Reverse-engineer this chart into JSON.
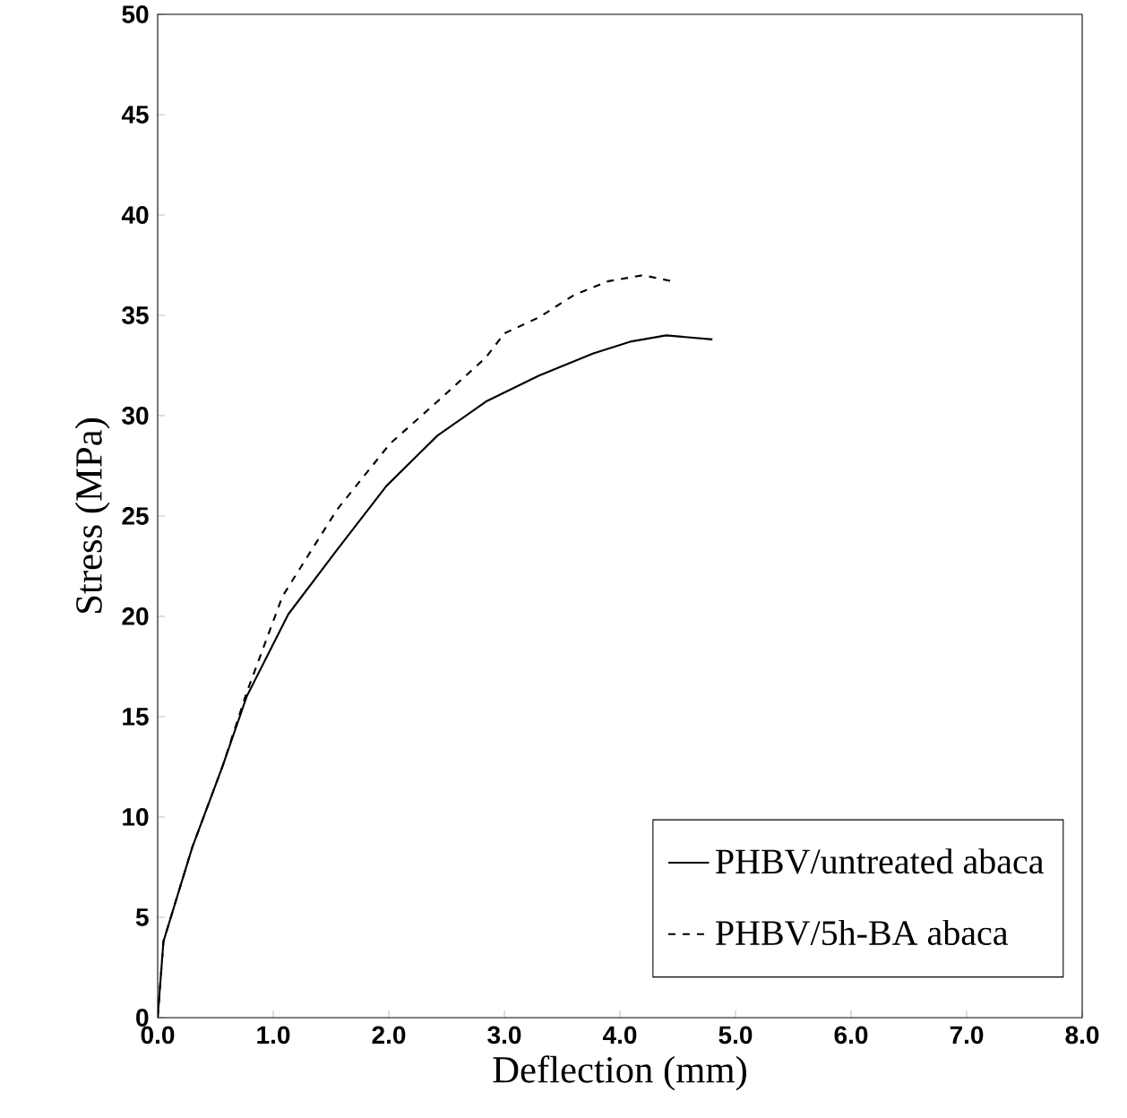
{
  "chart_data": {
    "type": "line",
    "xlabel": "Deflection  (mm)",
    "ylabel": "Stress  (MPa)",
    "xlim": [
      0,
      8
    ],
    "ylim": [
      0,
      50
    ],
    "xticks": [
      {
        "value": 0,
        "label": "0.0"
      },
      {
        "value": 1,
        "label": "1.0"
      },
      {
        "value": 2,
        "label": "2.0"
      },
      {
        "value": 3,
        "label": "3.0"
      },
      {
        "value": 4,
        "label": "4.0"
      },
      {
        "value": 5,
        "label": "5.0"
      },
      {
        "value": 6,
        "label": "6.0"
      },
      {
        "value": 7,
        "label": "7.0"
      },
      {
        "value": 8,
        "label": "8.0"
      }
    ],
    "yticks": [
      0,
      5,
      10,
      15,
      20,
      25,
      30,
      35,
      40,
      45,
      50
    ],
    "legend": "bottom right",
    "grid": false,
    "marker": "none",
    "series": [
      {
        "name": "PHBV/untreated abaca",
        "color": "#000000",
        "line_style": "solid",
        "x": [
          0,
          0.05,
          0.3,
          0.56,
          0.77,
          1.13,
          1.55,
          1.98,
          2.42,
          2.84,
          3.3,
          3.77,
          4.1,
          4.4,
          4.8
        ],
        "values": [
          0,
          3.8,
          8.5,
          12.5,
          16.0,
          20.1,
          23.3,
          26.5,
          29.0,
          30.7,
          32.0,
          33.1,
          33.7,
          34.0,
          33.8
        ]
      },
      {
        "name": "PHBV/5h-BA abaca",
        "color": "#000000",
        "line_style": "dashed",
        "x": [
          0,
          0.05,
          0.3,
          0.56,
          0.77,
          1.08,
          1.55,
          2.01,
          2.42,
          2.84,
          3.0,
          3.3,
          3.6,
          3.9,
          4.2,
          4.45
        ],
        "values": [
          0,
          3.8,
          8.5,
          12.5,
          16.2,
          21.0,
          25.3,
          28.6,
          30.7,
          32.9,
          34.1,
          34.9,
          36.0,
          36.7,
          37.0,
          36.7
        ]
      }
    ]
  }
}
